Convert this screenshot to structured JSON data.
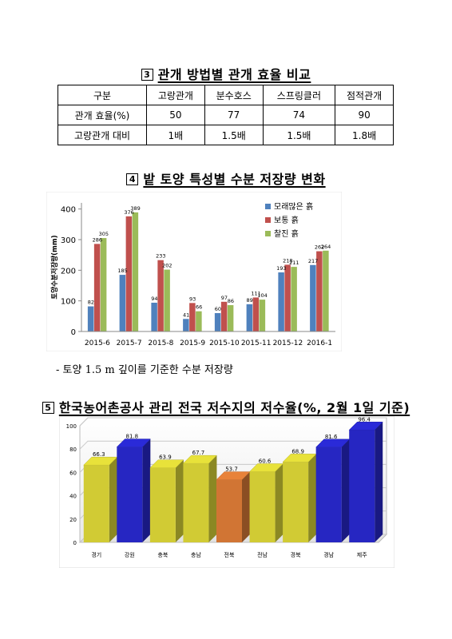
{
  "section1": {
    "number": "3",
    "title": "관개 방법별 관개 효율 비교",
    "table": {
      "headers": [
        "구분",
        "고랑관개",
        "분수호스",
        "스프링클러",
        "점적관개"
      ],
      "rows": [
        [
          "관개 효율(%)",
          "50",
          "77",
          "74",
          "90"
        ],
        [
          "고랑관개 대비",
          "1배",
          "1.5배",
          "1.5배",
          "1.8배"
        ]
      ]
    }
  },
  "section2": {
    "number": "4",
    "title": "밭 토양 특성별 수분 저장량 변화",
    "note": "- 토양 1.5 m 깊이를 기준한 수분 저장량"
  },
  "section3": {
    "number": "5",
    "title": "한국농어촌공사 관리 전국 저수지의 저수율(%, 2월 1일 기준)"
  },
  "colors": {
    "sandy": "#4f81bd",
    "normal": "#c0504d",
    "fine": "#9bbb59",
    "yellow_bar": "#e8e23a",
    "blue_bar": "#2a2ad8",
    "orange_bar": "#e8823a"
  },
  "chart_data": [
    {
      "type": "bar",
      "categories": [
        "2015-6",
        "2015-7",
        "2015-8",
        "2015-9",
        "2015-10",
        "2015-11",
        "2015-12",
        "2016-1"
      ],
      "series": [
        {
          "name": "모래많은 흙",
          "values": [
            82,
            185,
            94,
            41,
            60,
            89,
            193,
            217
          ]
        },
        {
          "name": "보통 흙",
          "values": [
            286,
            376,
            233,
            93,
            97,
            111,
            218,
            262
          ]
        },
        {
          "name": "찰진 흙",
          "values": [
            305,
            389,
            202,
            66,
            86,
            104,
            211,
            264
          ]
        }
      ],
      "ylabel": "토양수분저장량(mm)",
      "yticks": [
        "0",
        "100",
        "200",
        "300",
        "400"
      ],
      "ylim": [
        0,
        420
      ],
      "legend": "top-right",
      "grid": false
    },
    {
      "type": "bar",
      "categories": [
        "경기",
        "강원",
        "충북",
        "충남",
        "전북",
        "전남",
        "경북",
        "경남",
        "제주"
      ],
      "values": [
        66.3,
        81.8,
        63.9,
        67.7,
        53.7,
        60.6,
        68.9,
        81.6,
        96.4
      ],
      "value_labels": [
        "66.3",
        "81.8",
        "63.9",
        "67.7",
        "53.7",
        "60.6",
        "68.9",
        "81.6",
        "96.4"
      ],
      "bar_colors": [
        "yellow",
        "blue",
        "yellow",
        "yellow",
        "orange",
        "yellow",
        "yellow",
        "blue",
        "blue"
      ],
      "yticks": [
        "0",
        "20",
        "40",
        "60",
        "80",
        "100"
      ],
      "ylim": [
        0,
        100
      ],
      "grid": true
    }
  ]
}
